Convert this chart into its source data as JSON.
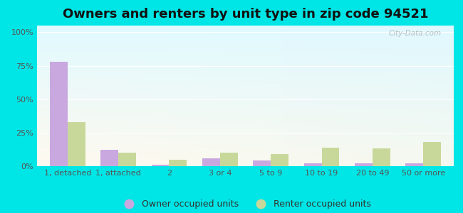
{
  "title": "Owners and renters by unit type in zip code 94521",
  "categories": [
    "1, detached",
    "1, attached",
    "2",
    "3 or 4",
    "5 to 9",
    "10 to 19",
    "20 to 49",
    "50 or more"
  ],
  "owner_values": [
    78,
    12,
    1,
    6,
    4,
    2,
    2,
    2
  ],
  "renter_values": [
    33,
    10,
    5,
    10,
    9,
    14,
    13,
    18
  ],
  "owner_color": "#c9a8e0",
  "renter_color": "#c8d89a",
  "background_cyan": "#00e5e5",
  "bar_width": 0.35,
  "ylim": [
    0,
    105
  ],
  "yticks": [
    0,
    25,
    50,
    75,
    100
  ],
  "ytick_labels": [
    "0%",
    "25%",
    "50%",
    "75%",
    "100%"
  ],
  "legend_owner": "Owner occupied units",
  "legend_renter": "Renter occupied units",
  "watermark": "City-Data.com",
  "title_fontsize": 13,
  "tick_fontsize": 8,
  "legend_fontsize": 9
}
